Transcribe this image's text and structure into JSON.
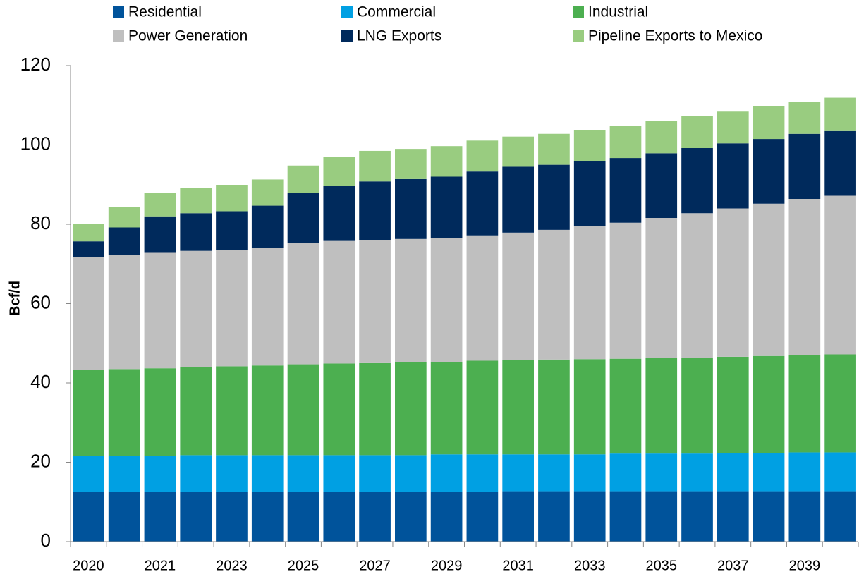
{
  "chart_data": {
    "type": "stacked_bar",
    "y_label": "Bcf/d",
    "categories": [
      "2020",
      null,
      "2021",
      null,
      "2023",
      null,
      "2025",
      null,
      "2027",
      null,
      "2029",
      null,
      "2031",
      null,
      "2033",
      null,
      "2035",
      null,
      "2037",
      null,
      "2039",
      null
    ],
    "series": [
      {
        "name": "Residential",
        "color": "#00539b",
        "values": [
          12.5,
          12.5,
          12.5,
          12.5,
          12.5,
          12.5,
          12.5,
          12.5,
          12.5,
          12.5,
          12.5,
          12.6,
          12.7,
          12.7,
          12.7,
          12.7,
          12.7,
          12.7,
          12.7,
          12.7,
          12.7,
          12.7
        ]
      },
      {
        "name": "Commercial",
        "color": "#00a0e3",
        "values": [
          9.1,
          9.1,
          9.1,
          9.3,
          9.3,
          9.3,
          9.3,
          9.3,
          9.3,
          9.3,
          9.5,
          9.4,
          9.3,
          9.3,
          9.3,
          9.5,
          9.5,
          9.5,
          9.6,
          9.6,
          9.8,
          9.8
        ]
      },
      {
        "name": "Industrial",
        "color": "#4caf50",
        "values": [
          21.6,
          21.9,
          22.1,
          22.2,
          22.4,
          22.6,
          22.9,
          23.1,
          23.2,
          23.4,
          23.3,
          23.6,
          23.7,
          23.9,
          24.0,
          23.9,
          24.1,
          24.2,
          24.3,
          24.5,
          24.5,
          24.7
        ]
      },
      {
        "name": "Power Generation",
        "color": "#bfbfbf",
        "values": [
          28.6,
          28.8,
          29.1,
          29.3,
          29.4,
          29.7,
          30.6,
          30.9,
          31.0,
          31.1,
          31.3,
          31.6,
          32.2,
          32.7,
          33.6,
          34.3,
          35.3,
          36.4,
          37.4,
          38.4,
          39.4,
          40.0
        ]
      },
      {
        "name": "LNG Exports",
        "color": "#002a5c",
        "values": [
          3.9,
          6.9,
          9.2,
          9.5,
          9.7,
          10.6,
          12.6,
          13.8,
          14.8,
          15.1,
          15.4,
          16.1,
          16.6,
          16.4,
          16.4,
          16.3,
          16.3,
          16.4,
          16.4,
          16.3,
          16.4,
          16.3
        ]
      },
      {
        "name": "Pipeline Exports to Mexico",
        "color": "#99cc80",
        "values": [
          4.3,
          5.1,
          5.9,
          6.4,
          6.6,
          6.6,
          6.9,
          7.4,
          7.7,
          7.6,
          7.7,
          7.8,
          7.6,
          7.8,
          7.8,
          8.1,
          8.1,
          8.1,
          8.0,
          8.2,
          8.1,
          8.4
        ]
      }
    ],
    "ylim": [
      0,
      120
    ],
    "yticks": [
      0,
      20,
      40,
      60,
      80,
      100,
      120
    ],
    "grid": false,
    "legend": "top"
  }
}
